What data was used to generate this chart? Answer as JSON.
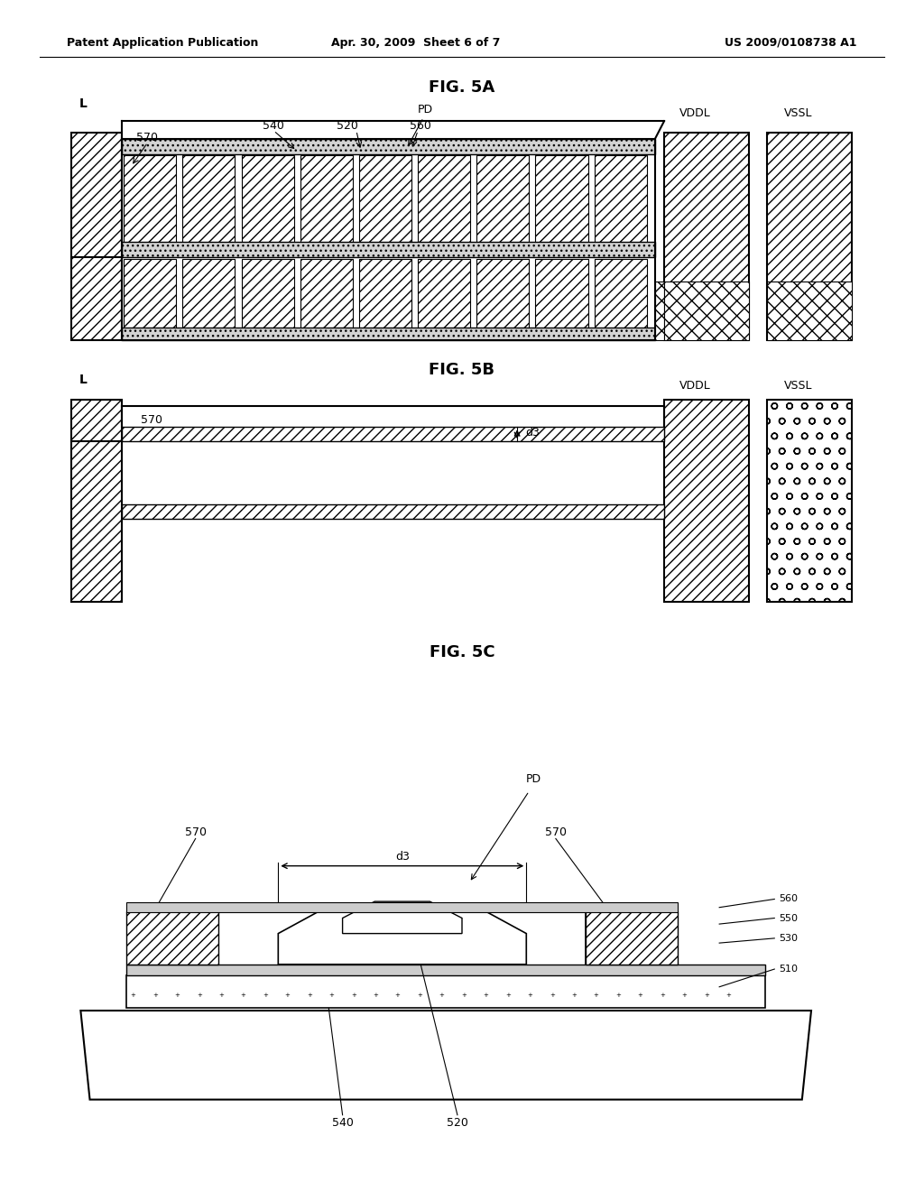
{
  "bg_color": "#ffffff",
  "header_left": "Patent Application Publication",
  "header_mid": "Apr. 30, 2009  Sheet 6 of 7",
  "header_right": "US 2009/0108738 A1",
  "fig5a_title": "FIG. 5A",
  "fig5b_title": "FIG. 5B",
  "fig5c_title": "FIG. 5C",
  "line_color": "#000000"
}
